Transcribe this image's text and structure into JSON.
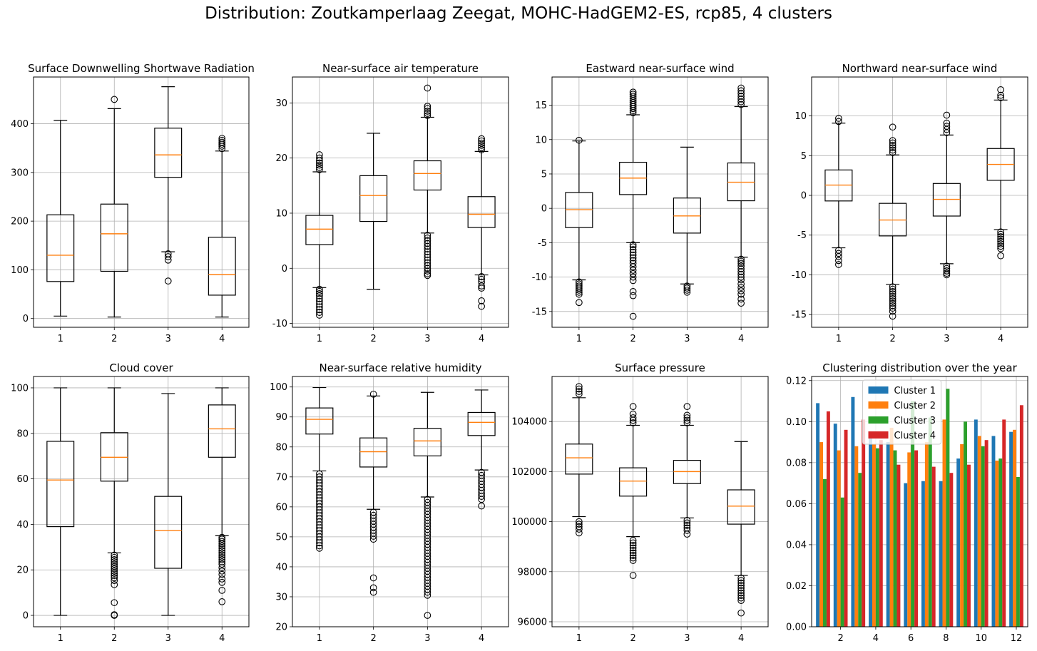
{
  "suptitle": "Distribution: Zoutkamperlaag Zeegat, MOHC-HadGEM2-ES, rcp85, 4 clusters",
  "colors": {
    "box_line": "#000000",
    "median": "#ff7f0e",
    "grid": "#b0b0b0",
    "cluster_1": "#1f77b4",
    "cluster_2": "#ff7f0e",
    "cluster_3": "#2ca02c",
    "cluster_4": "#d62728"
  },
  "chart_data": [
    {
      "type": "box",
      "title": "Surface Downwelling Shortwave Radiation",
      "categories": [
        "1",
        "2",
        "3",
        "4"
      ],
      "ylim": [
        -18,
        496
      ],
      "yticks": [
        0,
        100,
        200,
        300,
        400
      ],
      "grid": true,
      "boxes": [
        {
          "whislo": 5,
          "q1": 76,
          "med": 130,
          "q3": 213,
          "whishi": 407,
          "fliers": []
        },
        {
          "whislo": 3,
          "q1": 97,
          "med": 174,
          "q3": 235,
          "whishi": 431,
          "fliers": [
            450
          ]
        },
        {
          "whislo": 137,
          "q1": 290,
          "med": 336,
          "q3": 391,
          "whishi": 476,
          "fliers": [
            133,
            127,
            120,
            77
          ]
        },
        {
          "whislo": 3,
          "q1": 48,
          "med": 90,
          "q3": 167,
          "whishi": 344,
          "fliers": [
            349,
            354,
            358,
            362,
            366,
            370
          ]
        }
      ]
    },
    {
      "type": "box",
      "title": "Near-surface air temperature",
      "categories": [
        "1",
        "2",
        "3",
        "4"
      ],
      "ylim": [
        -10.7,
        34.7
      ],
      "yticks": [
        -10,
        0,
        10,
        20,
        30
      ],
      "grid": true,
      "boxes": [
        {
          "whislo": -3.5,
          "q1": 4.3,
          "med": 7.1,
          "q3": 9.6,
          "whishi": 17.5,
          "fliers": [
            17.9,
            18.3,
            18.7,
            19.1,
            19.5,
            20.0,
            20.6,
            -3.8,
            -4.2,
            -4.6,
            -5.0,
            -5.5,
            -6.0,
            -6.5,
            -7.0,
            -7.5,
            -8.0,
            -8.5
          ]
        },
        {
          "whislo": -3.8,
          "q1": 8.5,
          "med": 13.2,
          "q3": 16.8,
          "whishi": 24.5,
          "fliers": []
        },
        {
          "whislo": 6.4,
          "q1": 14.2,
          "med": 17.2,
          "q3": 19.5,
          "whishi": 27.4,
          "fliers": [
            27.7,
            28.1,
            28.5,
            29.0,
            29.4,
            32.7,
            6.0,
            5.5,
            5.0,
            4.5,
            4.0,
            3.5,
            3.0,
            2.5,
            2.0,
            1.5,
            1.0,
            0.5,
            0.0,
            -0.5,
            -1.0,
            -1.3
          ]
        },
        {
          "whislo": -1.2,
          "q1": 7.4,
          "med": 9.8,
          "q3": 13.0,
          "whishi": 21.2,
          "fliers": [
            21.5,
            21.9,
            22.3,
            22.7,
            23.1,
            23.5,
            -1.5,
            -2.0,
            -2.5,
            -3.2,
            -3.6,
            -5.9,
            -6.9
          ]
        }
      ]
    },
    {
      "type": "box",
      "title": "Eastward near-surface wind",
      "categories": [
        "1",
        "2",
        "3",
        "4"
      ],
      "ylim": [
        -17.3,
        19.1
      ],
      "yticks": [
        -15,
        -10,
        -5,
        0,
        5,
        10,
        15
      ],
      "grid": true,
      "boxes": [
        {
          "whislo": -10.4,
          "q1": -2.8,
          "med": -0.2,
          "q3": 2.3,
          "whishi": 9.8,
          "fliers": [
            9.9,
            -10.7,
            -11.0,
            -11.3,
            -11.6,
            -11.9,
            -12.2,
            -12.5,
            -13.7
          ]
        },
        {
          "whislo": -5.0,
          "q1": 2.0,
          "med": 4.4,
          "q3": 6.7,
          "whishi": 13.6,
          "fliers": [
            13.9,
            14.2,
            14.5,
            14.8,
            15.1,
            15.4,
            15.7,
            16.0,
            16.3,
            16.6,
            16.9,
            -5.3,
            -5.6,
            -6.0,
            -6.4,
            -6.8,
            -7.2,
            -7.6,
            -8.0,
            -8.5,
            -9.0,
            -9.5,
            -10.0,
            -10.5,
            -12.1,
            -12.7,
            -15.7
          ]
        },
        {
          "whislo": -11.0,
          "q1": -3.6,
          "med": -1.1,
          "q3": 1.5,
          "whishi": 8.9,
          "fliers": [
            -11.3,
            -11.6,
            -11.9,
            -12.2
          ]
        },
        {
          "whislo": -7.1,
          "q1": 1.1,
          "med": 3.8,
          "q3": 6.6,
          "whishi": 14.8,
          "fliers": [
            15.1,
            15.5,
            15.9,
            16.3,
            16.7,
            17.1,
            17.5,
            -7.4,
            -7.7,
            -8.0,
            -8.4,
            -8.8,
            -9.2,
            -9.6,
            -10.0,
            -10.4,
            -11.0,
            -11.5,
            -12.0,
            -12.5,
            -13.2,
            -13.8
          ]
        }
      ]
    },
    {
      "type": "box",
      "title": "Northward near-surface wind",
      "categories": [
        "1",
        "2",
        "3",
        "4"
      ],
      "ylim": [
        -16.6,
        14.9
      ],
      "yticks": [
        -15,
        -10,
        -5,
        0,
        5,
        10
      ],
      "grid": true,
      "boxes": [
        {
          "whislo": -6.6,
          "q1": -0.7,
          "med": 1.3,
          "q3": 3.2,
          "whishi": 9.1,
          "fliers": [
            9.3,
            9.7,
            -6.9,
            -7.3,
            -7.7,
            -8.2,
            -8.7
          ]
        },
        {
          "whislo": -11.2,
          "q1": -5.1,
          "med": -3.1,
          "q3": -1.0,
          "whishi": 5.1,
          "fliers": [
            5.4,
            5.7,
            6.0,
            6.3,
            6.6,
            6.9,
            8.6,
            -11.5,
            -11.8,
            -12.1,
            -12.4,
            -12.7,
            -13.0,
            -13.3,
            -13.6,
            -13.9,
            -14.2,
            -14.6,
            -15.2
          ]
        },
        {
          "whislo": -8.6,
          "q1": -2.6,
          "med": -0.5,
          "q3": 1.5,
          "whishi": 7.6,
          "fliers": [
            7.9,
            8.3,
            8.7,
            9.1,
            10.1,
            -8.9,
            -9.2,
            -9.5,
            -9.8,
            -10.0
          ]
        },
        {
          "whislo": -4.3,
          "q1": 1.9,
          "med": 3.9,
          "q3": 5.9,
          "whishi": 12.0,
          "fliers": [
            12.3,
            12.6,
            13.3,
            -4.6,
            -4.9,
            -5.2,
            -5.5,
            -5.8,
            -6.1,
            -6.4,
            -6.7,
            -7.6
          ]
        }
      ]
    },
    {
      "type": "box",
      "title": "Cloud cover",
      "categories": [
        "1",
        "2",
        "3",
        "4"
      ],
      "ylim": [
        -5,
        105
      ],
      "yticks": [
        0,
        20,
        40,
        60,
        80,
        100
      ],
      "grid": true,
      "boxes": [
        {
          "whislo": 0,
          "q1": 39,
          "med": 59.5,
          "q3": 76.5,
          "whishi": 100,
          "fliers": []
        },
        {
          "whislo": 27.5,
          "q1": 59,
          "med": 69.5,
          "q3": 80.3,
          "whishi": 100,
          "fliers": [
            26.5,
            25.5,
            24.5,
            23.5,
            22.5,
            21.5,
            20.5,
            19.5,
            18.5,
            17.5,
            16.5,
            15.3,
            13.5,
            5.6,
            0.3,
            0.0
          ]
        },
        {
          "whislo": 0,
          "q1": 20.7,
          "med": 37.3,
          "q3": 52.3,
          "whishi": 97.5,
          "fliers": []
        },
        {
          "whislo": 35,
          "q1": 69.5,
          "med": 82,
          "q3": 92.5,
          "whishi": 100,
          "fliers": [
            34.3,
            33.5,
            32.5,
            31.5,
            30.5,
            29.5,
            28.5,
            27.5,
            26.5,
            25.5,
            24.5,
            23.5,
            22.5,
            21.0,
            19.5,
            18.0,
            16.0,
            14.5,
            11.0,
            6.0
          ]
        }
      ]
    },
    {
      "type": "box",
      "title": "Near-surface relative humidity",
      "categories": [
        "1",
        "2",
        "3",
        "4"
      ],
      "ylim": [
        20,
        103.5
      ],
      "yticks": [
        20,
        30,
        40,
        50,
        60,
        70,
        80,
        90,
        100
      ],
      "grid": true,
      "boxes": [
        {
          "whislo": 72,
          "q1": 84.3,
          "med": 89.2,
          "q3": 93,
          "whishi": 99.8,
          "fliers": [
            71.0,
            70.0,
            69.0,
            68.0,
            67.0,
            66.0,
            65.0,
            64.0,
            63.0,
            62.0,
            61.0,
            60.0,
            59.0,
            58.0,
            57.0,
            56.0,
            55.0,
            54.0,
            53.0,
            52.0,
            51.0,
            50.0,
            49.0,
            48.0,
            47.0,
            46.2
          ]
        },
        {
          "whislo": 59.2,
          "q1": 73.3,
          "med": 78.4,
          "q3": 83,
          "whishi": 97,
          "fliers": [
            97.6,
            58.2,
            57.2,
            56.2,
            55.2,
            54.2,
            53.2,
            52.2,
            51.2,
            50.2,
            49.2,
            36.3,
            33.0,
            31.5
          ]
        },
        {
          "whislo": 63.3,
          "q1": 77,
          "med": 82,
          "q3": 86.2,
          "whishi": 98.2,
          "fliers": [
            62.5,
            61.5,
            60.5,
            59.5,
            58.5,
            57.5,
            56.5,
            55.5,
            54.5,
            53.5,
            52.5,
            51.5,
            50.5,
            49.5,
            48.5,
            47.5,
            46.5,
            45.5,
            44.5,
            43.5,
            42.5,
            41.5,
            40.5,
            39.5,
            38.5,
            37.5,
            36.5,
            35.5,
            34.5,
            33.5,
            32.5,
            31.5,
            30.5,
            23.8
          ]
        },
        {
          "whislo": 72.3,
          "q1": 83.8,
          "med": 88.2,
          "q3": 91.5,
          "whishi": 99,
          "fliers": [
            71.5,
            70.5,
            69.5,
            68.5,
            67.5,
            66.5,
            65.5,
            64.5,
            63.5,
            62.5,
            60.3
          ]
        }
      ]
    },
    {
      "type": "box",
      "title": "Surface pressure",
      "categories": [
        "1",
        "2",
        "3",
        "4"
      ],
      "ylim": [
        95800,
        105800
      ],
      "yticks": [
        96000,
        98000,
        100000,
        102000,
        104000
      ],
      "grid": true,
      "boxes": [
        {
          "whislo": 100200,
          "q1": 101900,
          "med": 102550,
          "q3": 103100,
          "whishi": 104950,
          "fliers": [
            105100,
            105200,
            105300,
            105400,
            100000,
            99900,
            99800,
            99700,
            99550
          ]
        },
        {
          "whislo": 99400,
          "q1": 101020,
          "med": 101620,
          "q3": 102150,
          "whishi": 103850,
          "fliers": [
            103950,
            104050,
            104150,
            104300,
            104600,
            99250,
            99150,
            99050,
            98950,
            98850,
            98750,
            98650,
            98550,
            98450,
            97850
          ]
        },
        {
          "whislo": 100150,
          "q1": 101520,
          "med": 102000,
          "q3": 102450,
          "whishi": 103850,
          "fliers": [
            103950,
            104050,
            104150,
            104250,
            104600,
            100050,
            99950,
            99850,
            99750,
            99650,
            99500
          ]
        },
        {
          "whislo": 97850,
          "q1": 99900,
          "med": 100620,
          "q3": 101270,
          "whishi": 103200,
          "fliers": [
            97750,
            97650,
            97550,
            97450,
            97350,
            97250,
            97150,
            97050,
            96950,
            96850,
            96350
          ]
        }
      ]
    },
    {
      "type": "bar",
      "title": "Clustering distribution over the year",
      "categories": [
        "1",
        "2",
        "3",
        "4",
        "5",
        "6",
        "7",
        "8",
        "9",
        "10",
        "11",
        "12"
      ],
      "xticks": [
        2,
        4,
        6,
        8,
        10,
        12
      ],
      "xlim": [
        0.35,
        12.65
      ],
      "ylim": [
        0,
        0.122
      ],
      "yticks": [
        "0.00",
        "0.02",
        "0.04",
        "0.06",
        "0.08",
        "0.10",
        "0.12"
      ],
      "grid": true,
      "legend_loc": "upper center",
      "series": [
        {
          "name": "Cluster 1",
          "values": [
            0.109,
            0.099,
            0.112,
            0.092,
            0.09,
            0.07,
            0.071,
            0.071,
            0.082,
            0.101,
            0.093,
            0.095
          ]
        },
        {
          "name": "Cluster 2",
          "values": [
            0.09,
            0.086,
            0.088,
            0.089,
            0.097,
            0.085,
            0.09,
            0.101,
            0.089,
            0.093,
            0.081,
            0.096
          ]
        },
        {
          "name": "Cluster 3",
          "values": [
            0.072,
            0.063,
            0.075,
            0.087,
            0.086,
            0.11,
            0.102,
            0.116,
            0.1,
            0.088,
            0.082,
            0.073
          ]
        },
        {
          "name": "Cluster 4",
          "values": [
            0.105,
            0.096,
            0.101,
            0.091,
            0.079,
            0.086,
            0.078,
            0.075,
            0.079,
            0.091,
            0.101,
            0.108
          ]
        }
      ]
    }
  ]
}
